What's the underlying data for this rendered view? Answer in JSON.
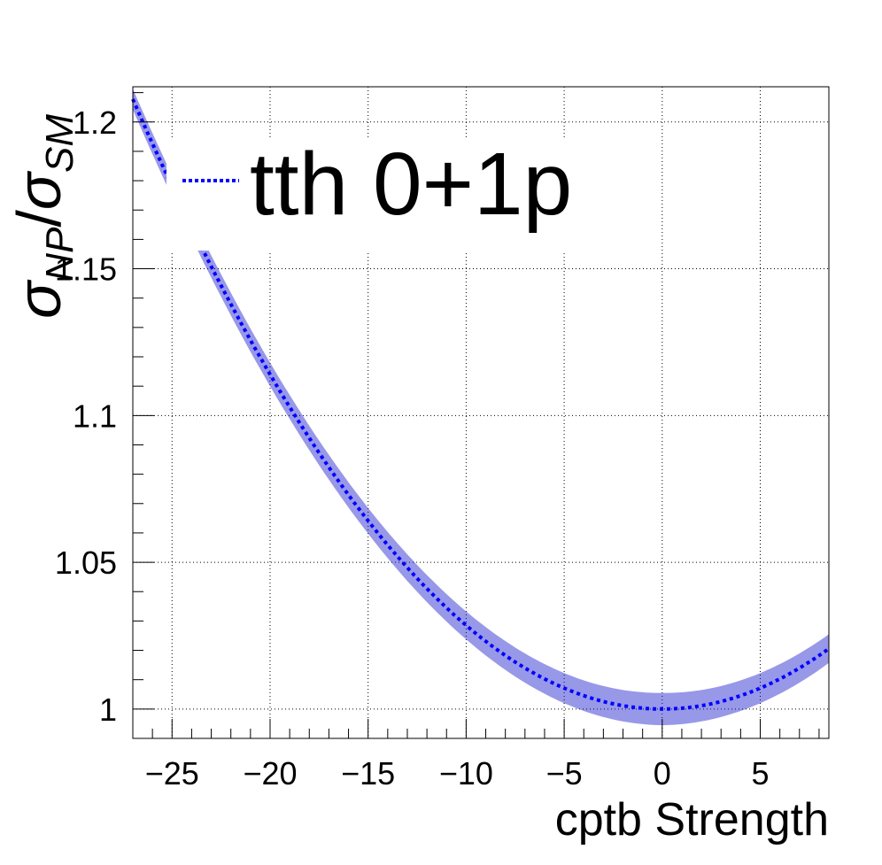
{
  "chart_data": {
    "type": "line",
    "title": "",
    "xlabel": "cptb Strength",
    "ylabel_main": "σ",
    "ylabel_num_sub": "NP",
    "ylabel_slash": "/",
    "ylabel_den": "σ",
    "ylabel_den_sub": "SM",
    "xlim": [
      -27.0,
      8.5
    ],
    "ylim": [
      0.99,
      1.212
    ],
    "x_ticks": [
      -25,
      -20,
      -15,
      -10,
      -5,
      0,
      5
    ],
    "x_tick_labels": [
      "−25",
      "−20",
      "−15",
      "−10",
      "−5",
      "0",
      "5"
    ],
    "y_ticks": [
      1.0,
      1.05,
      1.1,
      1.15,
      1.2
    ],
    "y_tick_labels": [
      "1",
      "1.05",
      "1.1",
      "1.15",
      "1.2"
    ],
    "grid": true,
    "legend_position": "top-left",
    "series": [
      {
        "name": "tth 0+1p",
        "color": "#0000ff",
        "band_color": "#1a1acc",
        "line_style": "dotted",
        "model": "quadratic",
        "min_x": 0,
        "min_y": 1.0,
        "curvature": 0.000285,
        "band_halfwidth_at_min": 0.0055,
        "band_halfwidth_at_left": 0.0035,
        "x_range": [
          -27.0,
          8.5
        ]
      }
    ]
  }
}
